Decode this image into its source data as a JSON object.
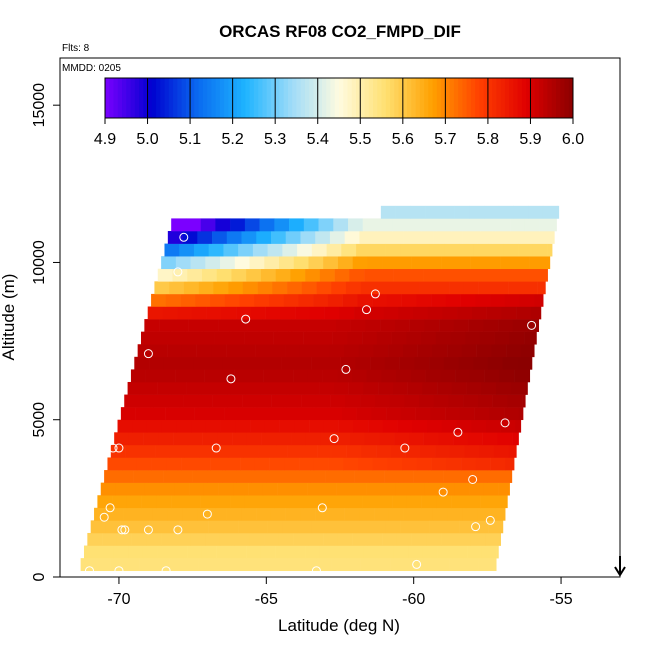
{
  "chart_data": {
    "type": "heatmap",
    "title": "ORCAS RF08 CO2_FMPD_DIF",
    "flights_label": "Flts: 8",
    "date_label": "MMDD: 0205",
    "xlabel": "Latitude (deg N)",
    "ylabel": "Altitude (m)",
    "xlim": [
      -72,
      -53
    ],
    "ylim": [
      0,
      16500
    ],
    "x_ticks": [
      -70,
      -65,
      -60,
      -55
    ],
    "x_tick_labels": [
      "-70",
      "-65",
      "-60",
      "-55"
    ],
    "y_ticks": [
      0,
      5000,
      10000,
      15000
    ],
    "y_tick_labels": [
      "0",
      "5000",
      "10000",
      "15000"
    ],
    "colorbar": {
      "min": 4.9,
      "max": 6.0,
      "ticks": [
        4.9,
        5.0,
        5.1,
        5.2,
        5.3,
        5.4,
        5.5,
        5.6,
        5.7,
        5.8,
        5.9,
        6.0
      ],
      "tick_labels": [
        "4.9",
        "5.0",
        "5.1",
        "5.2",
        "5.3",
        "5.4",
        "5.5",
        "5.6",
        "5.7",
        "5.8",
        "5.9",
        "6.0"
      ],
      "colors": [
        "#7b00ff",
        "#0000d0",
        "#0a6cf0",
        "#1eb4ff",
        "#a0dcf8",
        "#fffbe0",
        "#ffe070",
        "#ffa000",
        "#ff4000",
        "#e00000",
        "#8b0000"
      ]
    },
    "field_bounds": {
      "x_left_bottom": -71.3,
      "x_right_bottom": -57.2,
      "x_left_top": -68.0,
      "x_right_top": -55.0,
      "y_bottom": 200,
      "y_top_left": 11000,
      "y_top_right": 11800
    },
    "field_samples": [
      {
        "alt": 500,
        "value": 5.55
      },
      {
        "alt": 1500,
        "value": 5.62
      },
      {
        "alt": 2500,
        "value": 5.68
      },
      {
        "alt": 3500,
        "value": 5.78
      },
      {
        "alt": 5000,
        "value": 5.9
      },
      {
        "alt": 6500,
        "value": 5.95
      },
      {
        "alt": 8000,
        "value": 5.92
      },
      {
        "alt": 9500,
        "value": 5.75
      },
      {
        "alt": 10500,
        "value": 5.5
      },
      {
        "alt": 11500,
        "value": 5.35
      }
    ],
    "sample_points": [
      {
        "lat": -71.0,
        "alt": 200
      },
      {
        "lat": -70.5,
        "alt": 1900
      },
      {
        "lat": -70.3,
        "alt": 2200
      },
      {
        "lat": -70.2,
        "alt": 4100
      },
      {
        "lat": -70.0,
        "alt": 4100
      },
      {
        "lat": -69.9,
        "alt": 1500
      },
      {
        "lat": -69.8,
        "alt": 1500
      },
      {
        "lat": -69.0,
        "alt": 1500
      },
      {
        "lat": -68.0,
        "alt": 1500
      },
      {
        "lat": -69.0,
        "alt": 7100
      },
      {
        "lat": -68.0,
        "alt": 9700
      },
      {
        "lat": -67.8,
        "alt": 10800
      },
      {
        "lat": -67.0,
        "alt": 2000
      },
      {
        "lat": -66.7,
        "alt": 4100
      },
      {
        "lat": -66.2,
        "alt": 6300
      },
      {
        "lat": -65.7,
        "alt": 8200
      },
      {
        "lat": -63.1,
        "alt": 2200
      },
      {
        "lat": -62.7,
        "alt": 4400
      },
      {
        "lat": -62.3,
        "alt": 6600
      },
      {
        "lat": -61.6,
        "alt": 8500
      },
      {
        "lat": -61.3,
        "alt": 9000
      },
      {
        "lat": -60.3,
        "alt": 4100
      },
      {
        "lat": -59.9,
        "alt": 400
      },
      {
        "lat": -59.0,
        "alt": 2700
      },
      {
        "lat": -58.5,
        "alt": 4600
      },
      {
        "lat": -58.0,
        "alt": 3100
      },
      {
        "lat": -57.9,
        "alt": 1600
      },
      {
        "lat": -57.4,
        "alt": 1800
      },
      {
        "lat": -56.9,
        "alt": 4900
      },
      {
        "lat": -56.0,
        "alt": 8000
      },
      {
        "lat": -63.3,
        "alt": 200
      },
      {
        "lat": -68.4,
        "alt": 200
      },
      {
        "lat": -70.0,
        "alt": 200
      }
    ],
    "arrow_marker": {
      "lat": -53.0,
      "direction": "down"
    }
  }
}
